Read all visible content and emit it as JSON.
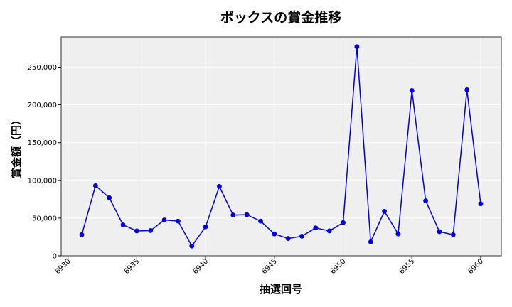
{
  "chart_data": {
    "type": "line",
    "title": "ボックスの賞金推移",
    "xlabel": "抽選回号",
    "ylabel": "賞金額（円）",
    "xlim": [
      6929.5,
      6961.5
    ],
    "ylim": [
      0,
      290000
    ],
    "xticks": [
      6930,
      6935,
      6940,
      6945,
      6950,
      6955,
      6960
    ],
    "yticks": [
      0,
      50000,
      100000,
      150000,
      200000,
      250000
    ],
    "ytick_labels": [
      "0",
      "50,000",
      "100,000",
      "150,000",
      "200,000",
      "250,000"
    ],
    "grid": true,
    "legend": "none",
    "colors": {
      "line": "#0000dd",
      "marker": "#0000dd",
      "plot_bg": "#efefef",
      "grid": "#ffffff"
    },
    "series": [
      {
        "x": [
          6931,
          6932,
          6933,
          6934,
          6935,
          6936,
          6937,
          6938,
          6939,
          6940,
          6941,
          6942,
          6943,
          6944,
          6945,
          6946,
          6947,
          6948,
          6949,
          6950,
          6951,
          6952,
          6953,
          6954,
          6955,
          6956,
          6957,
          6958,
          6959,
          6960
        ],
        "values": [
          28000,
          93000,
          77000,
          41000,
          33000,
          33500,
          47500,
          46000,
          13000,
          38500,
          92000,
          54000,
          54500,
          46000,
          29000,
          23000,
          26000,
          37000,
          33000,
          44000,
          277000,
          18500,
          59000,
          29000,
          219000,
          73000,
          32000,
          28000,
          220000,
          69000
        ]
      }
    ]
  }
}
